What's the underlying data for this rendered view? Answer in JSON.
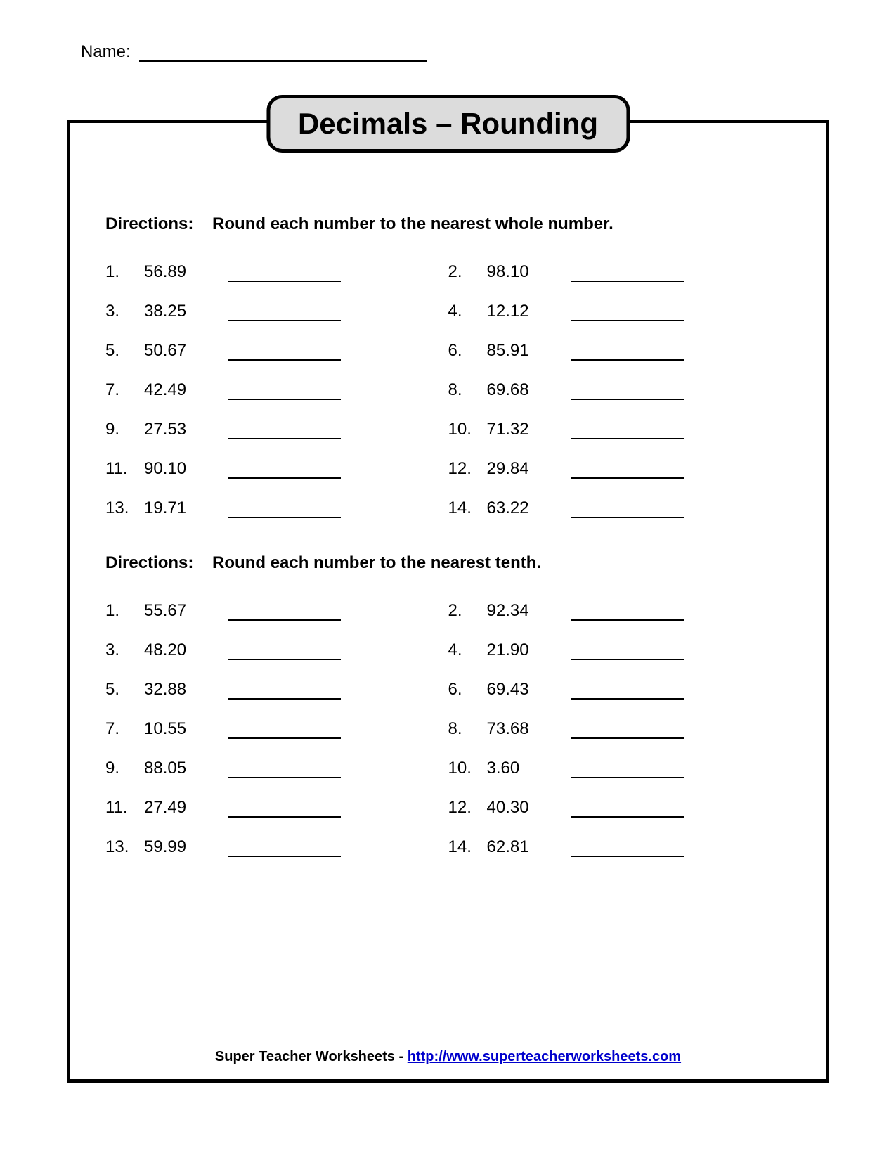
{
  "name_label": "Name:",
  "title": "Decimals – Rounding",
  "section1": {
    "directions_label": "Directions:",
    "directions_text": "Round each number to the nearest whole number.",
    "problems": [
      {
        "n": "1.",
        "v": "56.89"
      },
      {
        "n": "2.",
        "v": "98.10"
      },
      {
        "n": "3.",
        "v": "38.25"
      },
      {
        "n": "4.",
        "v": "12.12"
      },
      {
        "n": "5.",
        "v": "50.67"
      },
      {
        "n": "6.",
        "v": "85.91"
      },
      {
        "n": "7.",
        "v": "42.49"
      },
      {
        "n": "8.",
        "v": "69.68"
      },
      {
        "n": "9.",
        "v": "27.53"
      },
      {
        "n": "10.",
        "v": "71.32"
      },
      {
        "n": "11.",
        "v": "90.10"
      },
      {
        "n": "12.",
        "v": "29.84"
      },
      {
        "n": "13.",
        "v": "19.71"
      },
      {
        "n": "14.",
        "v": "63.22"
      }
    ]
  },
  "section2": {
    "directions_label": "Directions:",
    "directions_text": "Round each number to the nearest tenth.",
    "problems": [
      {
        "n": "1.",
        "v": "55.67"
      },
      {
        "n": "2.",
        "v": "92.34"
      },
      {
        "n": "3.",
        "v": "48.20"
      },
      {
        "n": "4.",
        "v": "21.90"
      },
      {
        "n": "5.",
        "v": "32.88"
      },
      {
        "n": "6.",
        "v": "69.43"
      },
      {
        "n": "7.",
        "v": "10.55"
      },
      {
        "n": "8.",
        "v": "73.68"
      },
      {
        "n": "9.",
        "v": "88.05"
      },
      {
        "n": "10.",
        "v": "3.60"
      },
      {
        "n": "11.",
        "v": "27.49"
      },
      {
        "n": "12.",
        "v": "40.30"
      },
      {
        "n": "13.",
        "v": "59.99"
      },
      {
        "n": "14.",
        "v": "62.81"
      }
    ]
  },
  "footer_text": "Super Teacher Worksheets  -  ",
  "footer_link": "http://www.superteacherworksheets.com"
}
